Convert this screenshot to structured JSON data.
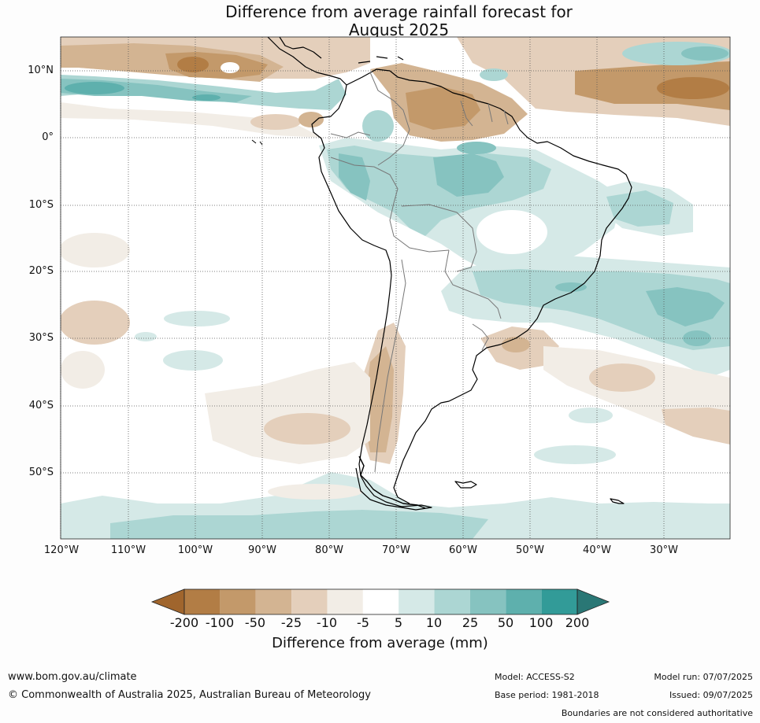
{
  "title": {
    "line1": "Difference from average rainfall forecast for",
    "line2": "August 2025"
  },
  "map": {
    "lat_labels": [
      "10°N",
      "0°",
      "10°S",
      "20°S",
      "30°S",
      "40°S",
      "50°S"
    ],
    "lon_labels": [
      "120°W",
      "110°W",
      "100°W",
      "90°W",
      "80°W",
      "70°W",
      "60°W",
      "50°W",
      "40°W",
      "30°W"
    ]
  },
  "legend": {
    "title": "Difference from average (mm)",
    "tick_labels": [
      "-200",
      "-100",
      "-50",
      "-25",
      "-10",
      "-5",
      "5",
      "10",
      "25",
      "50",
      "100",
      "200"
    ],
    "bin_colors": [
      "#a0652d",
      "#b27d45",
      "#c3996a",
      "#d3b492",
      "#e4cfbb",
      "#f2ede6",
      "#ffffff",
      "#d5e9e7",
      "#acd6d3",
      "#86c3c0",
      "#5eb0ad",
      "#329b98",
      "#2a7775"
    ],
    "under_color": "#a0652d",
    "over_color": "#2a7775"
  },
  "footer": {
    "website": "www.bom.gov.au/climate",
    "copyright": "© Commonwealth of Australia 2025, Australian Bureau of Meteorology",
    "model": "Model: ACCESS-S2",
    "base_period": "Base period: 1981-2018",
    "model_run": "Model run: 07/07/2025",
    "issued": "Issued: 09/07/2025",
    "disclaimer": "Boundaries are not considered authoritative"
  }
}
